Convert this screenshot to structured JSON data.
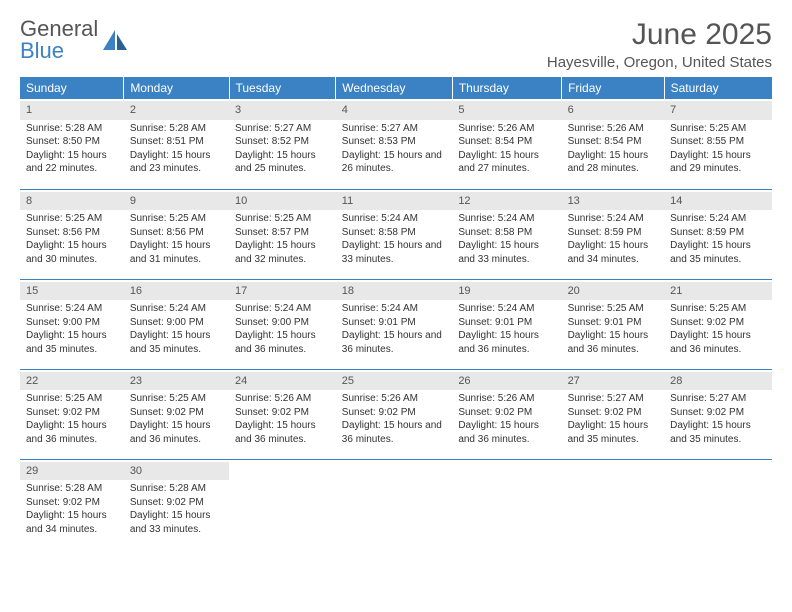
{
  "logo": {
    "text1": "General",
    "text2": "Blue"
  },
  "title": "June 2025",
  "location": "Hayesville, Oregon, United States",
  "colors": {
    "header_bg": "#3b82c4",
    "header_fg": "#ffffff",
    "daynum_bg": "#e8e8e8",
    "border": "#3b82c4",
    "text": "#333333",
    "title_color": "#555555"
  },
  "day_headers": [
    "Sunday",
    "Monday",
    "Tuesday",
    "Wednesday",
    "Thursday",
    "Friday",
    "Saturday"
  ],
  "weeks": [
    [
      {
        "n": "1",
        "sr": "5:28 AM",
        "ss": "8:50 PM",
        "dl": "15 hours and 22 minutes."
      },
      {
        "n": "2",
        "sr": "5:28 AM",
        "ss": "8:51 PM",
        "dl": "15 hours and 23 minutes."
      },
      {
        "n": "3",
        "sr": "5:27 AM",
        "ss": "8:52 PM",
        "dl": "15 hours and 25 minutes."
      },
      {
        "n": "4",
        "sr": "5:27 AM",
        "ss": "8:53 PM",
        "dl": "15 hours and 26 minutes."
      },
      {
        "n": "5",
        "sr": "5:26 AM",
        "ss": "8:54 PM",
        "dl": "15 hours and 27 minutes."
      },
      {
        "n": "6",
        "sr": "5:26 AM",
        "ss": "8:54 PM",
        "dl": "15 hours and 28 minutes."
      },
      {
        "n": "7",
        "sr": "5:25 AM",
        "ss": "8:55 PM",
        "dl": "15 hours and 29 minutes."
      }
    ],
    [
      {
        "n": "8",
        "sr": "5:25 AM",
        "ss": "8:56 PM",
        "dl": "15 hours and 30 minutes."
      },
      {
        "n": "9",
        "sr": "5:25 AM",
        "ss": "8:56 PM",
        "dl": "15 hours and 31 minutes."
      },
      {
        "n": "10",
        "sr": "5:25 AM",
        "ss": "8:57 PM",
        "dl": "15 hours and 32 minutes."
      },
      {
        "n": "11",
        "sr": "5:24 AM",
        "ss": "8:58 PM",
        "dl": "15 hours and 33 minutes."
      },
      {
        "n": "12",
        "sr": "5:24 AM",
        "ss": "8:58 PM",
        "dl": "15 hours and 33 minutes."
      },
      {
        "n": "13",
        "sr": "5:24 AM",
        "ss": "8:59 PM",
        "dl": "15 hours and 34 minutes."
      },
      {
        "n": "14",
        "sr": "5:24 AM",
        "ss": "8:59 PM",
        "dl": "15 hours and 35 minutes."
      }
    ],
    [
      {
        "n": "15",
        "sr": "5:24 AM",
        "ss": "9:00 PM",
        "dl": "15 hours and 35 minutes."
      },
      {
        "n": "16",
        "sr": "5:24 AM",
        "ss": "9:00 PM",
        "dl": "15 hours and 35 minutes."
      },
      {
        "n": "17",
        "sr": "5:24 AM",
        "ss": "9:00 PM",
        "dl": "15 hours and 36 minutes."
      },
      {
        "n": "18",
        "sr": "5:24 AM",
        "ss": "9:01 PM",
        "dl": "15 hours and 36 minutes."
      },
      {
        "n": "19",
        "sr": "5:24 AM",
        "ss": "9:01 PM",
        "dl": "15 hours and 36 minutes."
      },
      {
        "n": "20",
        "sr": "5:25 AM",
        "ss": "9:01 PM",
        "dl": "15 hours and 36 minutes."
      },
      {
        "n": "21",
        "sr": "5:25 AM",
        "ss": "9:02 PM",
        "dl": "15 hours and 36 minutes."
      }
    ],
    [
      {
        "n": "22",
        "sr": "5:25 AM",
        "ss": "9:02 PM",
        "dl": "15 hours and 36 minutes."
      },
      {
        "n": "23",
        "sr": "5:25 AM",
        "ss": "9:02 PM",
        "dl": "15 hours and 36 minutes."
      },
      {
        "n": "24",
        "sr": "5:26 AM",
        "ss": "9:02 PM",
        "dl": "15 hours and 36 minutes."
      },
      {
        "n": "25",
        "sr": "5:26 AM",
        "ss": "9:02 PM",
        "dl": "15 hours and 36 minutes."
      },
      {
        "n": "26",
        "sr": "5:26 AM",
        "ss": "9:02 PM",
        "dl": "15 hours and 36 minutes."
      },
      {
        "n": "27",
        "sr": "5:27 AM",
        "ss": "9:02 PM",
        "dl": "15 hours and 35 minutes."
      },
      {
        "n": "28",
        "sr": "5:27 AM",
        "ss": "9:02 PM",
        "dl": "15 hours and 35 minutes."
      }
    ],
    [
      {
        "n": "29",
        "sr": "5:28 AM",
        "ss": "9:02 PM",
        "dl": "15 hours and 34 minutes."
      },
      {
        "n": "30",
        "sr": "5:28 AM",
        "ss": "9:02 PM",
        "dl": "15 hours and 33 minutes."
      },
      null,
      null,
      null,
      null,
      null
    ]
  ],
  "labels": {
    "sunrise": "Sunrise: ",
    "sunset": "Sunset: ",
    "daylight": "Daylight: "
  }
}
